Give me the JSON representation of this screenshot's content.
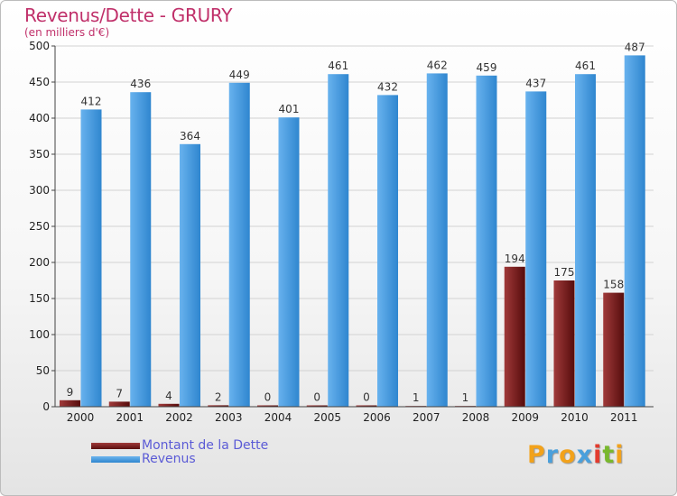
{
  "title": "Revenus/Dette - GRURY",
  "subtitle": "(en milliers d'€)",
  "chart_data": {
    "type": "bar",
    "categories": [
      "2000",
      "2001",
      "2002",
      "2003",
      "2004",
      "2005",
      "2006",
      "2007",
      "2008",
      "2009",
      "2010",
      "2011"
    ],
    "series": [
      {
        "name": "Montant de la Dette",
        "values": [
          9,
          7,
          4,
          2,
          0,
          0,
          0,
          1,
          1,
          194,
          175,
          158
        ],
        "color": "#7a1c1c"
      },
      {
        "name": "Revenus",
        "values": [
          412,
          436,
          364,
          449,
          401,
          461,
          432,
          462,
          459,
          437,
          461,
          487
        ],
        "color": "#4a9de0"
      }
    ],
    "ylim": [
      0,
      500
    ],
    "yticks": [
      0,
      50,
      100,
      150,
      200,
      250,
      300,
      350,
      400,
      450,
      500
    ],
    "grid": true
  },
  "legend": {
    "debt_label": "Montant de la Dette",
    "revenue_label": "Revenus"
  },
  "logo": {
    "letters": [
      "P",
      "r",
      "o",
      "x",
      "i",
      "t",
      "i"
    ],
    "colors": [
      "#f2a21b",
      "#4aa0dc",
      "#f2a21b",
      "#4aa0dc",
      "#e23b2e",
      "#79b82d",
      "#f2a21b"
    ]
  }
}
